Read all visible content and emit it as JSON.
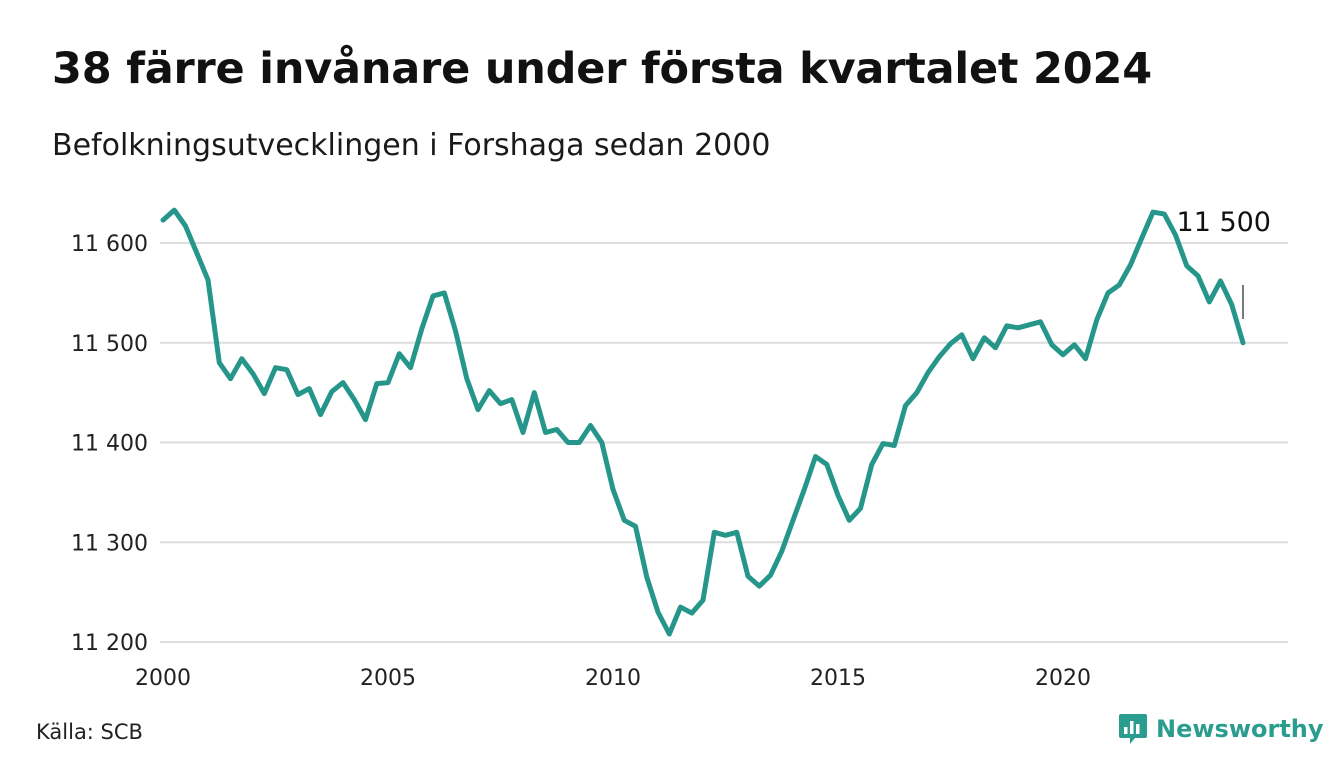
{
  "header": {
    "title": "38 färre invånare under första kvartalet 2024",
    "subtitle": "Befolkningsutvecklingen i Forshaga sedan 2000"
  },
  "footer": {
    "source": "Källa: SCB",
    "brand": "Newsworthy"
  },
  "colors": {
    "line": "#26968a",
    "grid": "#dddddd",
    "brand": "#2a9d8f"
  },
  "chart_data": {
    "type": "line",
    "title": "38 färre invånare under första kvartalet 2024",
    "subtitle": "Befolkningsutvecklingen i Forshaga sedan 2000",
    "xlabel": "",
    "ylabel": "",
    "xlim": [
      2000,
      2025
    ],
    "ylim": [
      11200,
      11650
    ],
    "x_ticks": [
      2000,
      2005,
      2010,
      2015,
      2020
    ],
    "y_ticks": [
      11200,
      11300,
      11400,
      11500,
      11600
    ],
    "y_tick_labels": [
      "11 200",
      "11 300",
      "11 400",
      "11 500",
      "11 600"
    ],
    "grid": true,
    "annotation": {
      "text": "11 500",
      "x": 2024.0,
      "y": 11500
    },
    "series": [
      {
        "values": [
          [
            2000.0,
            11623
          ],
          [
            2000.25,
            11633
          ],
          [
            2000.5,
            11617
          ],
          [
            2000.75,
            11590
          ],
          [
            2001.0,
            11563
          ],
          [
            2001.25,
            11480
          ],
          [
            2001.5,
            11464
          ],
          [
            2001.75,
            11484
          ],
          [
            2002.0,
            11469
          ],
          [
            2002.25,
            11449
          ],
          [
            2002.5,
            11475
          ],
          [
            2002.75,
            11473
          ],
          [
            2003.0,
            11448
          ],
          [
            2003.25,
            11454
          ],
          [
            2003.5,
            11428
          ],
          [
            2003.75,
            11451
          ],
          [
            2004.0,
            11460
          ],
          [
            2004.25,
            11443
          ],
          [
            2004.5,
            11423
          ],
          [
            2004.75,
            11459
          ],
          [
            2005.0,
            11460
          ],
          [
            2005.25,
            11489
          ],
          [
            2005.5,
            11475
          ],
          [
            2005.75,
            11514
          ],
          [
            2006.0,
            11547
          ],
          [
            2006.25,
            11550
          ],
          [
            2006.5,
            11512
          ],
          [
            2006.75,
            11464
          ],
          [
            2007.0,
            11433
          ],
          [
            2007.25,
            11452
          ],
          [
            2007.5,
            11439
          ],
          [
            2007.75,
            11443
          ],
          [
            2008.0,
            11410
          ],
          [
            2008.25,
            11450
          ],
          [
            2008.5,
            11410
          ],
          [
            2008.75,
            11413
          ],
          [
            2009.0,
            11400
          ],
          [
            2009.25,
            11400
          ],
          [
            2009.5,
            11417
          ],
          [
            2009.75,
            11400
          ],
          [
            2010.0,
            11353
          ],
          [
            2010.25,
            11322
          ],
          [
            2010.5,
            11316
          ],
          [
            2010.75,
            11265
          ],
          [
            2011.0,
            11230
          ],
          [
            2011.25,
            11208
          ],
          [
            2011.5,
            11235
          ],
          [
            2011.75,
            11229
          ],
          [
            2012.0,
            11242
          ],
          [
            2012.25,
            11310
          ],
          [
            2012.5,
            11307
          ],
          [
            2012.75,
            11310
          ],
          [
            2013.0,
            11266
          ],
          [
            2013.25,
            11256
          ],
          [
            2013.5,
            11267
          ],
          [
            2013.75,
            11291
          ],
          [
            2014.0,
            11322
          ],
          [
            2014.25,
            11353
          ],
          [
            2014.5,
            11386
          ],
          [
            2014.75,
            11378
          ],
          [
            2015.0,
            11347
          ],
          [
            2015.25,
            11322
          ],
          [
            2015.5,
            11334
          ],
          [
            2015.75,
            11378
          ],
          [
            2016.0,
            11399
          ],
          [
            2016.25,
            11397
          ],
          [
            2016.5,
            11437
          ],
          [
            2016.75,
            11450
          ],
          [
            2017.0,
            11470
          ],
          [
            2017.25,
            11486
          ],
          [
            2017.5,
            11499
          ],
          [
            2017.75,
            11508
          ],
          [
            2018.0,
            11484
          ],
          [
            2018.25,
            11505
          ],
          [
            2018.5,
            11495
          ],
          [
            2018.75,
            11517
          ],
          [
            2019.0,
            11515
          ],
          [
            2019.25,
            11518
          ],
          [
            2019.5,
            11521
          ],
          [
            2019.75,
            11498
          ],
          [
            2020.0,
            11488
          ],
          [
            2020.25,
            11498
          ],
          [
            2020.5,
            11484
          ],
          [
            2020.75,
            11523
          ],
          [
            2021.0,
            11550
          ],
          [
            2021.25,
            11558
          ],
          [
            2021.5,
            11578
          ],
          [
            2021.75,
            11605
          ],
          [
            2022.0,
            11631
          ],
          [
            2022.25,
            11629
          ],
          [
            2022.5,
            11608
          ],
          [
            2022.75,
            11577
          ],
          [
            2023.0,
            11567
          ],
          [
            2023.25,
            11541
          ],
          [
            2023.5,
            11562
          ],
          [
            2023.75,
            11538
          ],
          [
            2024.0,
            11500
          ]
        ]
      }
    ]
  }
}
